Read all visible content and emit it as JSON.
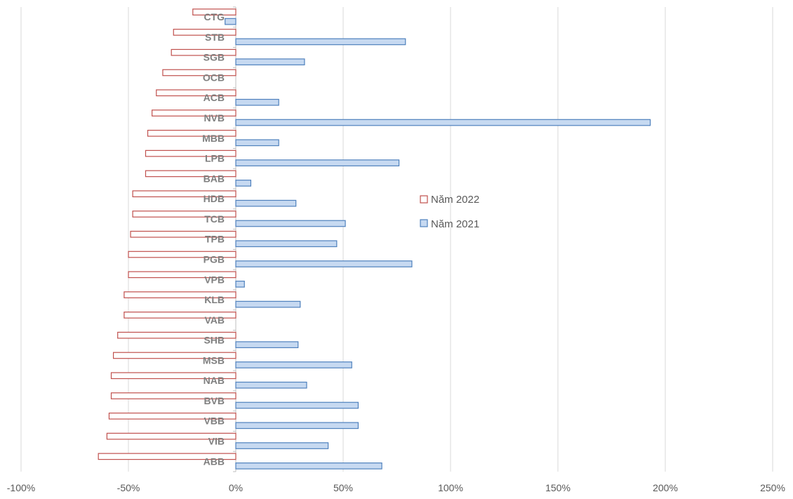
{
  "chart_data": {
    "type": "bar",
    "orientation": "horizontal",
    "categories": [
      "CTG",
      "STB",
      "SGB",
      "OCB",
      "ACB",
      "NVB",
      "MBB",
      "LPB",
      "BAB",
      "HDB",
      "TCB",
      "TPB",
      "PGB",
      "VPB",
      "KLB",
      "VAB",
      "SHB",
      "MSB",
      "NAB",
      "BVB",
      "VBB",
      "VIB",
      "ABB"
    ],
    "series": [
      {
        "name": "Năm 2022",
        "color_stroke": "#c0504d",
        "color_fill": "#ffffff",
        "values": [
          -20,
          -29,
          -30,
          -34,
          -37,
          -39,
          -41,
          -42,
          -42,
          -48,
          -48,
          -49,
          -50,
          -50,
          -52,
          -52,
          -55,
          -57,
          -58,
          -58,
          -59,
          -60,
          -64
        ]
      },
      {
        "name": "Năm 2021",
        "color_stroke": "#4f81bd",
        "color_fill": "#c6d9f1",
        "values": [
          -5,
          79,
          32,
          0,
          20,
          193,
          20,
          76,
          7,
          28,
          51,
          47,
          82,
          4,
          30,
          0,
          29,
          54,
          33,
          57,
          57,
          43,
          68
        ]
      }
    ],
    "x_ticks": [
      "-100%",
      "-50%",
      "0%",
      "50%",
      "100%",
      "150%",
      "200%",
      "250%"
    ],
    "xlim": [
      -100,
      250
    ],
    "grid": "vertical",
    "legend_position": "center-right",
    "title": "",
    "xlabel": "",
    "ylabel": ""
  }
}
